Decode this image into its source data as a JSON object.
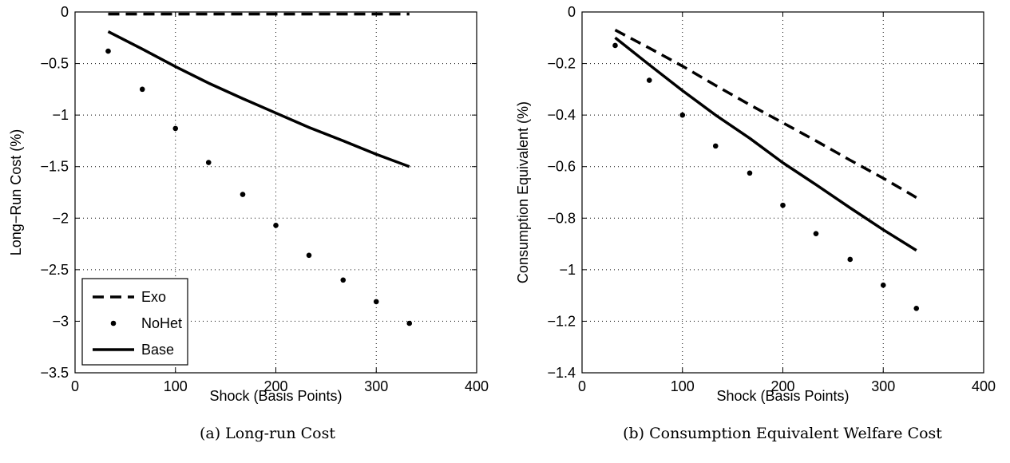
{
  "chart_data": [
    {
      "type": "line",
      "caption": "(a) Long-run Cost",
      "xlabel": "Shock (Basis Points)",
      "ylabel": "Long−Run Cost (%)",
      "xlim": [
        0,
        400
      ],
      "ylim": [
        -3.5,
        0
      ],
      "xticks": [
        0,
        100,
        200,
        300,
        400
      ],
      "xtick_labels": [
        "0",
        "100",
        "200",
        "300",
        "400"
      ],
      "yticks": [
        0,
        -0.5,
        -1,
        -1.5,
        -2,
        -2.5,
        -3,
        -3.5
      ],
      "ytick_labels": [
        "0",
        "−0.5",
        "−1",
        "−1.5",
        "−2",
        "−2.5",
        "−3",
        "−3.5"
      ],
      "grid": true,
      "legend_position": "bottom-left",
      "series": [
        {
          "name": "Exo",
          "style": "dashed",
          "x": [
            33,
            67,
            100,
            133,
            167,
            200,
            233,
            267,
            300,
            333
          ],
          "y": [
            -0.02,
            -0.02,
            -0.02,
            -0.02,
            -0.02,
            -0.02,
            -0.02,
            -0.02,
            -0.02,
            -0.02
          ]
        },
        {
          "name": "NoHet",
          "style": "dots",
          "x": [
            33,
            67,
            100,
            133,
            167,
            200,
            233,
            267,
            300,
            333
          ],
          "y": [
            -0.38,
            -0.75,
            -1.13,
            -1.46,
            -1.77,
            -2.07,
            -2.36,
            -2.6,
            -2.81,
            -3.02
          ]
        },
        {
          "name": "Base",
          "style": "solid",
          "x": [
            33,
            67,
            100,
            133,
            167,
            200,
            233,
            267,
            300,
            333
          ],
          "y": [
            -0.19,
            -0.36,
            -0.53,
            -0.69,
            -0.84,
            -0.98,
            -1.12,
            -1.25,
            -1.38,
            -1.5
          ]
        }
      ]
    },
    {
      "type": "line",
      "caption": "(b) Consumption Equivalent Welfare Cost",
      "xlabel": "Shock (Basis Points)",
      "ylabel": "Consumption Equivalent (%)",
      "xlim": [
        0,
        400
      ],
      "ylim": [
        -1.4,
        0
      ],
      "xticks": [
        0,
        100,
        200,
        300,
        400
      ],
      "xtick_labels": [
        "0",
        "100",
        "200",
        "300",
        "400"
      ],
      "yticks": [
        0,
        -0.2,
        -0.4,
        -0.6,
        -0.8,
        -1,
        -1.2,
        -1.4
      ],
      "ytick_labels": [
        "0",
        "−0.2",
        "−0.4",
        "−0.6",
        "−0.8",
        "−1",
        "−1.2",
        "−1.4"
      ],
      "grid": true,
      "series": [
        {
          "name": "Exo",
          "style": "dashed",
          "x": [
            33,
            67,
            100,
            133,
            167,
            200,
            233,
            267,
            300,
            333
          ],
          "y": [
            -0.07,
            -0.14,
            -0.21,
            -0.285,
            -0.36,
            -0.43,
            -0.5,
            -0.575,
            -0.645,
            -0.72
          ]
        },
        {
          "name": "NoHet",
          "style": "dots",
          "x": [
            33,
            67,
            100,
            133,
            167,
            200,
            233,
            267,
            300,
            333
          ],
          "y": [
            -0.13,
            -0.265,
            -0.4,
            -0.52,
            -0.625,
            -0.75,
            -0.86,
            -0.96,
            -1.06,
            -1.15
          ]
        },
        {
          "name": "Base",
          "style": "solid",
          "x": [
            33,
            67,
            100,
            133,
            167,
            200,
            233,
            267,
            300,
            333
          ],
          "y": [
            -0.1,
            -0.205,
            -0.305,
            -0.4,
            -0.49,
            -0.585,
            -0.67,
            -0.76,
            -0.845,
            -0.925
          ]
        }
      ]
    }
  ]
}
